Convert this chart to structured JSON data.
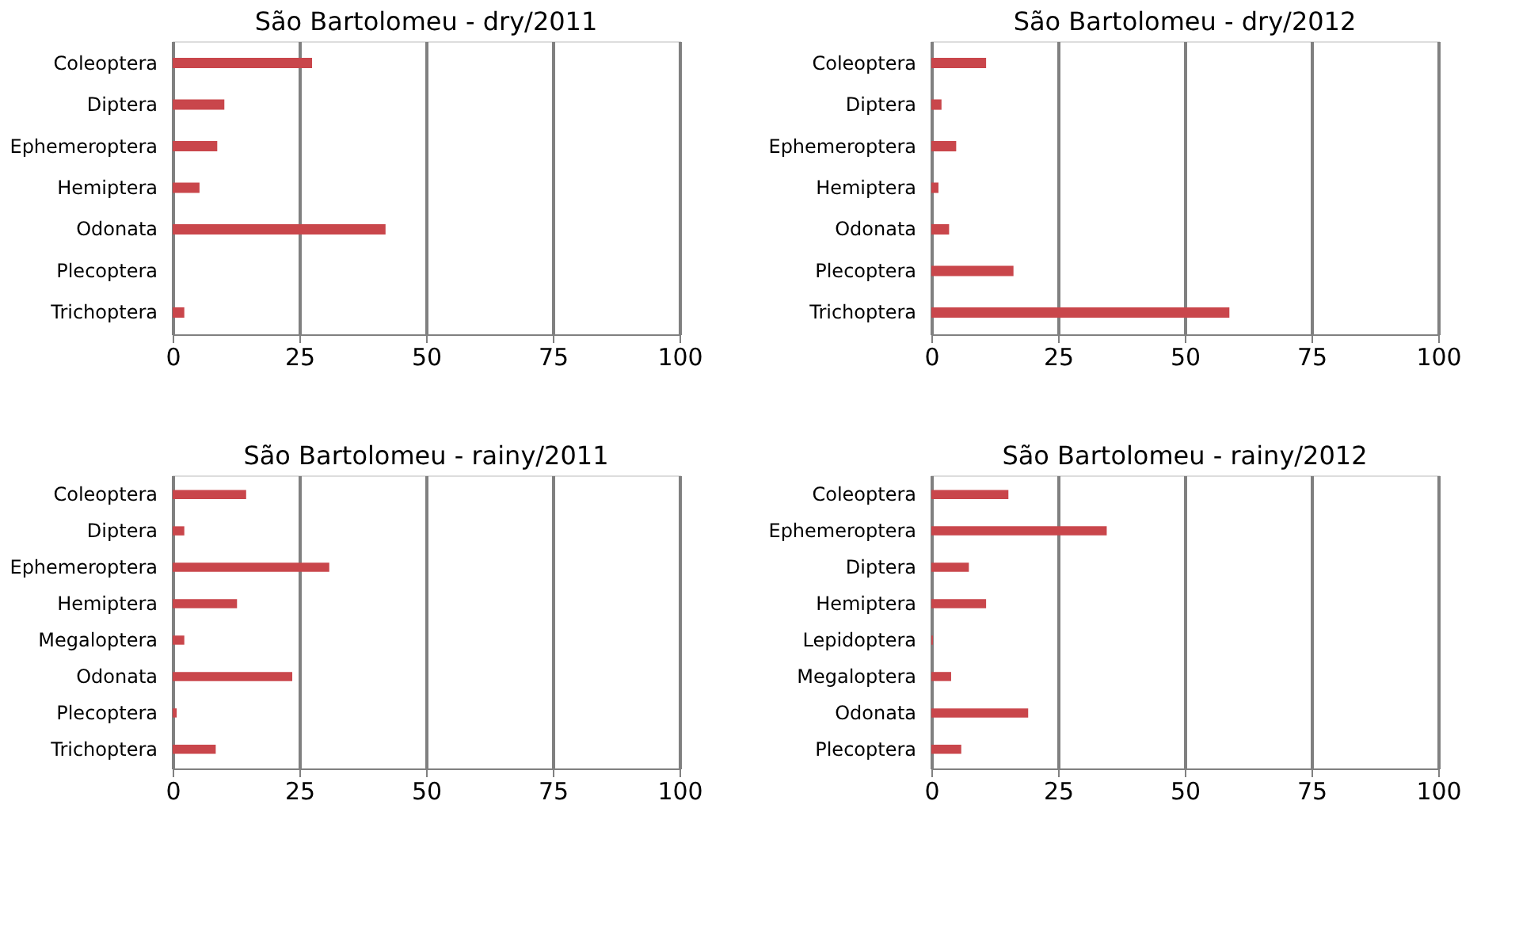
{
  "chart_data": [
    {
      "type": "bar",
      "orientation": "horizontal",
      "title": "São Bartolomeu - dry/2011",
      "categories": [
        "Coleoptera",
        "Diptera",
        "Ephemeroptera",
        "Hemiptera",
        "Odonata",
        "Plecoptera",
        "Trichoptera"
      ],
      "values": [
        27.5,
        10.2,
        8.8,
        5.3,
        42,
        0,
        2.3
      ],
      "color": "#c9464b",
      "xlim": [
        0,
        100
      ],
      "xticks": [
        0,
        25,
        50,
        75,
        100
      ],
      "grid": "x"
    },
    {
      "type": "bar",
      "orientation": "horizontal",
      "title": "São Bartolomeu - dry/2012",
      "categories": [
        "Coleoptera",
        "Diptera",
        "Ephemeroptera",
        "Hemiptera",
        "Odonata",
        "Plecoptera",
        "Trichoptera"
      ],
      "values": [
        10.8,
        2,
        4.9,
        1.4,
        3.5,
        16.2,
        58.8
      ],
      "color": "#c9464b",
      "xlim": [
        0,
        100
      ],
      "xticks": [
        0,
        25,
        50,
        75,
        100
      ],
      "grid": "x"
    },
    {
      "type": "bar",
      "orientation": "horizontal",
      "title": "São Bartolomeu - rainy/2011",
      "categories": [
        "Coleoptera",
        "Diptera",
        "Ephemeroptera",
        "Hemiptera",
        "Megaloptera",
        "Odonata",
        "Plecoptera",
        "Trichoptera"
      ],
      "values": [
        14.5,
        2.3,
        30.9,
        12.7,
        2.3,
        23.6,
        0.8,
        8.5
      ],
      "color": "#c9464b",
      "xlim": [
        0,
        100
      ],
      "xticks": [
        0,
        25,
        50,
        75,
        100
      ],
      "grid": "x"
    },
    {
      "type": "bar",
      "orientation": "horizontal",
      "title": "São Bartolomeu - rainy/2012",
      "categories": [
        "Coleoptera",
        "Ephemeroptera",
        "Diptera",
        "Hemiptera",
        "Lepidoptera",
        "Megaloptera",
        "Odonata",
        "Plecoptera"
      ],
      "values": [
        15.2,
        34.6,
        7.4,
        10.8,
        0.3,
        3.9,
        19.1,
        5.9
      ],
      "color": "#c9464b",
      "xlim": [
        0,
        100
      ],
      "xticks": [
        0,
        25,
        50,
        75,
        100
      ],
      "grid": "x"
    }
  ]
}
